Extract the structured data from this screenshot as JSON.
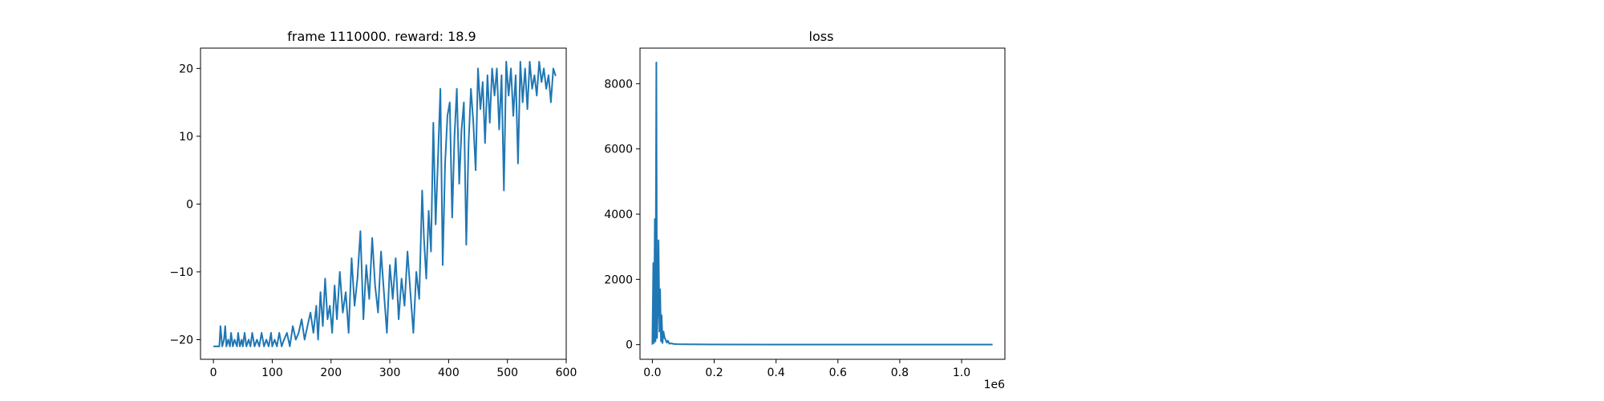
{
  "chart_data": [
    {
      "type": "line",
      "title": "frame 1110000. reward: 18.9",
      "xlabel": "",
      "ylabel": "",
      "xlim": [
        -22,
        600
      ],
      "ylim": [
        -22.9,
        23.0
      ],
      "xticks": [
        0,
        100,
        200,
        300,
        400,
        500,
        600
      ],
      "xtick_labels": [
        "0",
        "100",
        "200",
        "300",
        "400",
        "500",
        "600"
      ],
      "yticks": [
        -20,
        -10,
        0,
        10,
        20
      ],
      "ytick_labels": [
        "−20",
        "−10",
        "0",
        "10",
        "20"
      ],
      "grid": false,
      "color": "#1f77b4",
      "series": [
        {
          "x": [
            0,
            10,
            12,
            15,
            18,
            20,
            22,
            25,
            28,
            30,
            33,
            36,
            40,
            42,
            45,
            48,
            50,
            53,
            56,
            60,
            63,
            66,
            70,
            74,
            78,
            82,
            86,
            90,
            94,
            98,
            100,
            104,
            108,
            112,
            116,
            120,
            125,
            130,
            135,
            140,
            145,
            150,
            155,
            160,
            165,
            170,
            175,
            178,
            182,
            186,
            190,
            194,
            198,
            202,
            206,
            210,
            215,
            220,
            225,
            230,
            235,
            240,
            245,
            250,
            255,
            260,
            265,
            270,
            275,
            280,
            285,
            290,
            295,
            300,
            305,
            310,
            315,
            320,
            325,
            330,
            335,
            340,
            345,
            350,
            355,
            358,
            362,
            366,
            370,
            374,
            378,
            382,
            386,
            390,
            394,
            398,
            402,
            406,
            410,
            414,
            418,
            422,
            426,
            430,
            434,
            438,
            442,
            446,
            450,
            454,
            458,
            462,
            466,
            470,
            474,
            478,
            482,
            486,
            490,
            494,
            498,
            502,
            506,
            510,
            514,
            518,
            522,
            526,
            530,
            534,
            538,
            542,
            546,
            550,
            554,
            558,
            562,
            566,
            570,
            574,
            578,
            582
          ],
          "y": [
            -21,
            -21,
            -18,
            -21,
            -20,
            -18,
            -21,
            -20,
            -21,
            -19,
            -21,
            -20,
            -21,
            -19,
            -21,
            -20,
            -21,
            -19,
            -21,
            -20,
            -21,
            -19,
            -21,
            -20,
            -21,
            -19,
            -21,
            -20,
            -21,
            -19,
            -21,
            -20,
            -21,
            -19,
            -21,
            -20,
            -19,
            -21,
            -18,
            -20,
            -19,
            -17,
            -20,
            -18,
            -16,
            -19,
            -15,
            -20,
            -13,
            -18,
            -11,
            -17,
            -15,
            -19,
            -12,
            -17,
            -10,
            -16,
            -13,
            -19,
            -8,
            -15,
            -11,
            -4,
            -17,
            -9,
            -14,
            -5,
            -12,
            -16,
            -7,
            -13,
            -19,
            -9,
            -14,
            -8,
            -17,
            -11,
            -15,
            -7,
            -13,
            -19,
            -10,
            -14,
            2,
            -5,
            -11,
            -1,
            -7,
            12,
            -3,
            7,
            17,
            -9,
            6,
            13,
            15,
            -2,
            10,
            17,
            3,
            11,
            15,
            -6,
            9,
            17,
            12,
            5,
            20,
            14,
            18,
            9,
            19,
            12,
            20,
            16,
            20,
            11,
            19,
            2,
            21,
            16,
            20,
            13,
            19,
            6,
            21,
            15,
            20,
            14,
            21,
            17,
            19,
            16,
            21,
            18,
            20,
            17,
            19,
            15,
            20,
            18.9
          ]
        }
      ]
    },
    {
      "type": "line",
      "title": "loss",
      "xlabel": "",
      "ylabel": "",
      "xlim": [
        -0.04,
        1.14
      ],
      "ylim": [
        -450,
        9090
      ],
      "xticks": [
        0.0,
        0.2,
        0.4,
        0.6,
        0.8,
        1.0
      ],
      "xtick_labels": [
        "0.0",
        "0.2",
        "0.4",
        "0.6",
        "0.8",
        "1.0"
      ],
      "yticks": [
        0,
        2000,
        4000,
        6000,
        8000
      ],
      "ytick_labels": [
        "0",
        "2000",
        "4000",
        "6000",
        "8000"
      ],
      "x_offset_label": "1e6",
      "grid": false,
      "color": "#1f77b4",
      "series": [
        {
          "x": [
            0.0,
            0.003,
            0.005,
            0.008,
            0.01,
            0.013,
            0.015,
            0.018,
            0.02,
            0.023,
            0.025,
            0.028,
            0.03,
            0.033,
            0.036,
            0.04,
            0.043,
            0.047,
            0.05,
            0.055,
            0.06,
            0.07,
            0.08,
            0.1,
            0.15,
            0.2,
            0.4,
            0.6,
            0.8,
            1.0,
            1.1
          ],
          "y": [
            0,
            2500,
            50,
            3850,
            100,
            8650,
            200,
            1200,
            3200,
            400,
            1700,
            100,
            900,
            50,
            400,
            200,
            150,
            60,
            120,
            30,
            40,
            20,
            15,
            10,
            8,
            5,
            3,
            2,
            2,
            2,
            2
          ]
        }
      ]
    }
  ]
}
